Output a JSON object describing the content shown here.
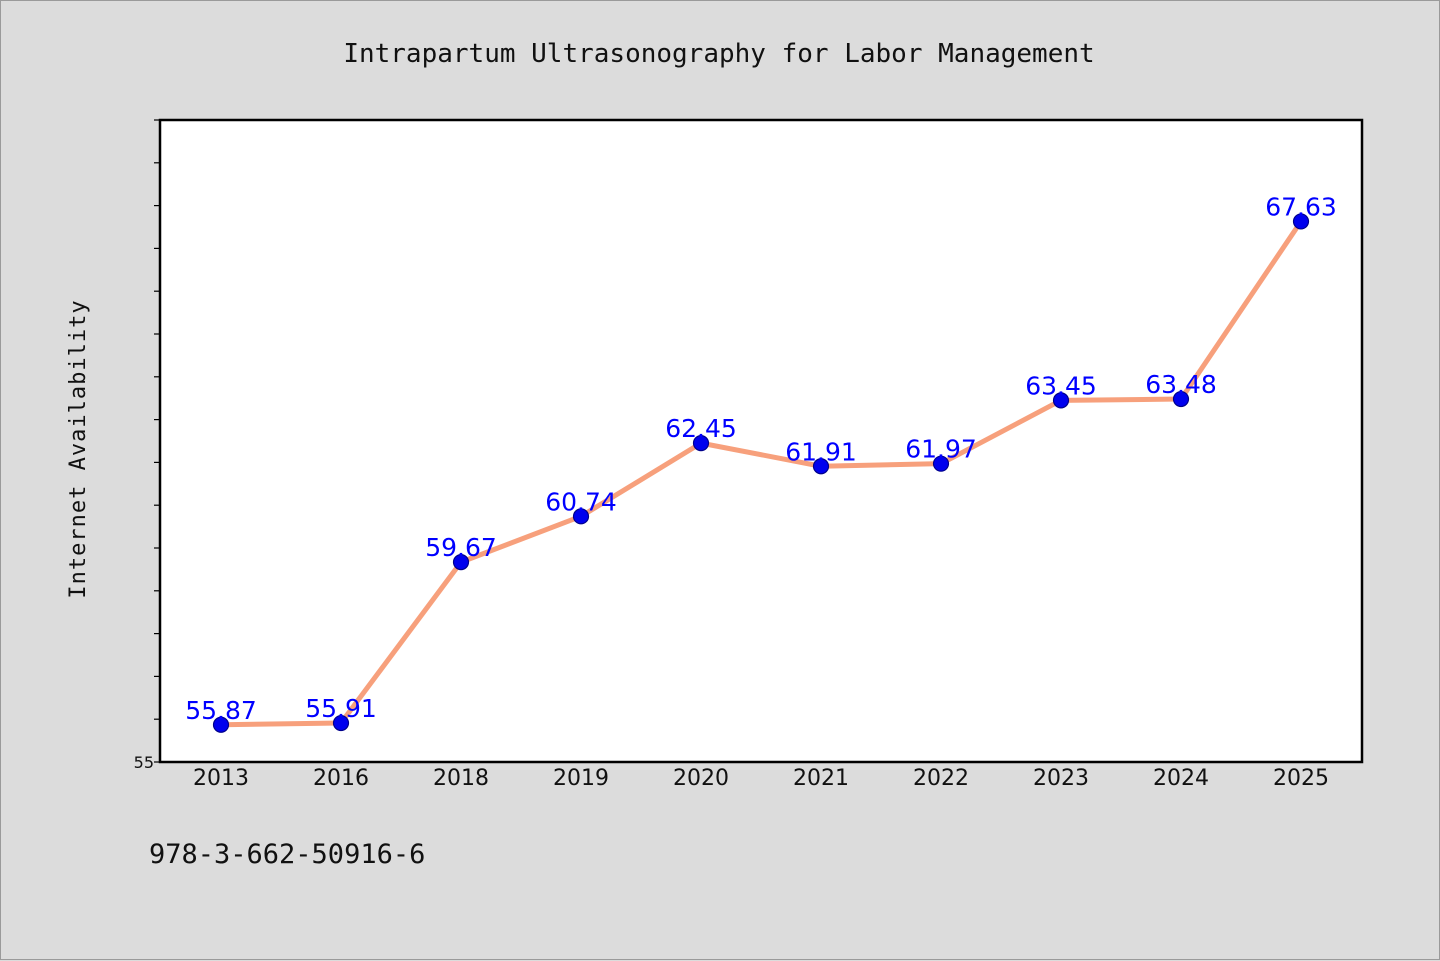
{
  "footer": {
    "text": "978-3-662-50916-6"
  },
  "colors": {
    "line": "#f7a07c",
    "marker": "#0000ee",
    "marker_edge": "#00008b",
    "data_label": "#0000ff",
    "plot_bg": "#ffffff",
    "page_bg": "#dcdcdc"
  },
  "chart_data": {
    "type": "line",
    "title": "Intrapartum Ultrasonography for Labor Management",
    "xlabel": "",
    "ylabel": "Internet Availability",
    "categories": [
      "2013",
      "2016",
      "2018",
      "2019",
      "2020",
      "2021",
      "2022",
      "2023",
      "2024",
      "2025"
    ],
    "series": [
      {
        "values": [
          55.87,
          55.91,
          59.67,
          60.74,
          62.45,
          61.91,
          61.97,
          63.45,
          63.48,
          67.63
        ],
        "labels": [
          "55.87",
          "55.91",
          "59.67",
          "60.74",
          "62.45",
          "61.91",
          "61.97",
          "63.45",
          "63.48",
          "67.63"
        ]
      }
    ],
    "ylim": [
      55,
      70
    ],
    "ytick_step": 1,
    "ytick_labels": [
      {
        "value": 55,
        "text": "55"
      }
    ],
    "grid": false,
    "legend": "none"
  }
}
